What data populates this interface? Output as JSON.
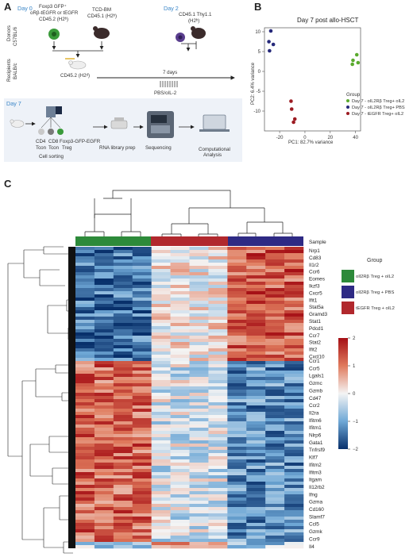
{
  "panel_a": {
    "letter": "A",
    "day0": "Day 0",
    "donors_label": "Donors",
    "donors_strain": "C57BL/6",
    "recipients_label": "Recipients",
    "recipients_strain": "BALB/c",
    "donor_cells_line1": "Foxp3 GFP⁺",
    "donor_cells_line2": "oRβ-tEGFR or tEGFR",
    "donor_cells_line3": "CD45.2 (H2ᵇ)",
    "tcd_bm_line1": "TCD-BM",
    "tcd_bm_line2": "CD45.1 (H2ᵇ)",
    "recipient_line": "CD45.2 (H2ᵈ)",
    "day2": "Day 2",
    "day2_cells_line1": "CD45.1 Thy1.1",
    "day2_cells_line2": "(H2ᵇ)",
    "seven_days": "7 days",
    "treatment": "PBS/oIL-2",
    "day7": "Day 7",
    "sort_labels": [
      "CD4",
      "CD8",
      "Foxp3-GFP-EGFR"
    ],
    "sort_labels2": [
      "Tcon",
      "Tcon",
      "Treg"
    ],
    "cell_sorting": "Cell sorting",
    "rna_prep": "RNA library prep",
    "sequencing": "Sequencing",
    "computational_line1": "Computational",
    "computational_line2": "Analysis"
  },
  "panel_b": {
    "letter": "B",
    "chart_data": {
      "type": "scatter",
      "title": "Day 7 post allo-HSCT",
      "xlabel": "PC1: 82.7% variance",
      "ylabel": "PC2: 6.4% variance",
      "xlim": [
        -32,
        44
      ],
      "ylim": [
        -15,
        11
      ],
      "xticks": [
        -20,
        0,
        20,
        40
      ],
      "yticks": [
        -10,
        -5,
        0,
        5,
        10
      ],
      "legend_title": "Group",
      "series": [
        {
          "name": "Day 7 - oIL2Rβ Treg+ oIL2",
          "color": "#5aaa2e",
          "points": [
            [
              41,
              4.2
            ],
            [
              38,
              2.8
            ],
            [
              42,
              2.2
            ],
            [
              37.5,
              1.8
            ]
          ]
        },
        {
          "name": "Day 7 - oIL2Rβ Treg+ PBS",
          "color": "#26297a",
          "points": [
            [
              -27,
              10.2
            ],
            [
              -25,
              6.8
            ],
            [
              -28.5,
              7.5
            ],
            [
              -28,
              5.2
            ]
          ]
        },
        {
          "name": "Day 7 - tEGFR Treg+ oIL2",
          "color": "#9c1b22",
          "points": [
            [
              -11,
              -7.5
            ],
            [
              -10.5,
              -9.5
            ],
            [
              -9,
              -12.8
            ],
            [
              -8,
              -12
            ]
          ]
        }
      ]
    }
  },
  "panel_c": {
    "letter": "C",
    "sample_label": "Sample",
    "group_title": "Group",
    "legend": [
      {
        "label": "oIl2Rβ Treg + oIL2",
        "color": "#2d8a3a"
      },
      {
        "label": "oIl2Rβ Treg + PBS",
        "color": "#2e2a84"
      },
      {
        "label": "tEGFR Treg + oIL2",
        "color": "#b1282d"
      }
    ],
    "colorbar": {
      "min": -2,
      "max": 2,
      "ticks": [
        2,
        1,
        0,
        -1,
        -2
      ]
    },
    "genes_top": [
      "Nrp1",
      "Cd83",
      "Il1r2",
      "Ccr6",
      "Eomes",
      "Ikzf3",
      "Cxcr5",
      "Ifit1",
      "Stat5a",
      "Gramd3",
      "Stat1",
      "Pdcd1",
      "Ccr7",
      "Stat2",
      "Ifit2",
      "Cxcl10"
    ],
    "genes_bottom": [
      "Ccr1",
      "Ccr5",
      "Lgals1",
      "Gzmc",
      "Gzmb",
      "Cd47",
      "Ccr2",
      "Il2ra",
      "Ifitm6",
      "Ifitm1",
      "Nlrp6",
      "Gata1",
      "Tnfrsf9",
      "Klf7",
      "Ifitm2",
      "Ifitm3",
      "Itgam",
      "Il12rb2",
      "Ifng",
      "Gzma",
      "Cd160",
      "Slamf7",
      "Ccl5",
      "Gzmk",
      "Ccr9",
      "Il4"
    ]
  }
}
